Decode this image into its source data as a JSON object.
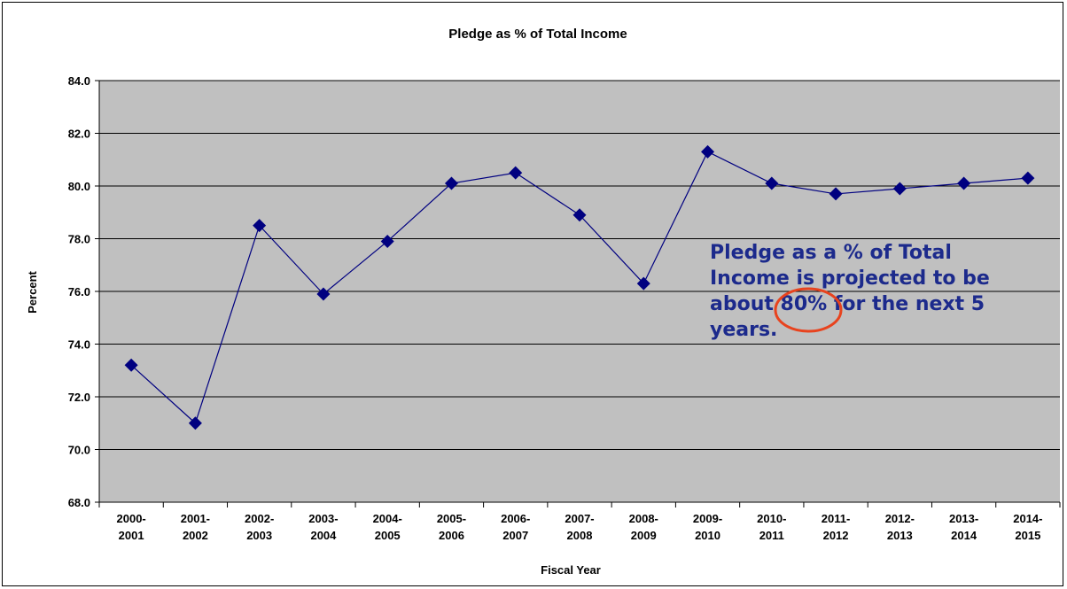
{
  "chart_data": {
    "type": "line",
    "title": "Pledge as % of Total Income",
    "xlabel": "Fiscal Year",
    "ylabel": "Percent",
    "categories": [
      [
        "2000-",
        "2001"
      ],
      [
        "2001-",
        "2002"
      ],
      [
        "2002-",
        "2003"
      ],
      [
        "2003-",
        "2004"
      ],
      [
        "2004-",
        "2005"
      ],
      [
        "2005-",
        "2006"
      ],
      [
        "2006-",
        "2007"
      ],
      [
        "2007-",
        "2008"
      ],
      [
        "2008-",
        "2009"
      ],
      [
        "2009-",
        "2010"
      ],
      [
        "2010-",
        "2011"
      ],
      [
        "2011-",
        "2012"
      ],
      [
        "2012-",
        "2013"
      ],
      [
        "2013-",
        "2014"
      ],
      [
        "2014-",
        "2015"
      ]
    ],
    "series": [
      {
        "values": [
          73.2,
          71.0,
          78.5,
          75.9,
          77.9,
          80.1,
          80.5,
          78.9,
          76.3,
          81.3,
          80.1,
          79.7,
          79.9,
          80.1,
          80.3
        ]
      }
    ],
    "ylim": [
      68.0,
      84.0
    ],
    "yticks": [
      "68.0",
      "70.0",
      "72.0",
      "74.0",
      "76.0",
      "78.0",
      "80.0",
      "82.0",
      "84.0"
    ],
    "grid": true,
    "colors": {
      "plot_background": "#c0c0c0",
      "line": "#000080",
      "marker": "#000080",
      "annotation_text": "#1c2a8c",
      "highlight_circle": "#e8431e"
    },
    "marker": "diamond",
    "annotation": {
      "lines": [
        "Pledge as a % of Total",
        "Income is projected to be",
        "about 80% for the next 5",
        "years."
      ],
      "highlight": "80%"
    }
  }
}
